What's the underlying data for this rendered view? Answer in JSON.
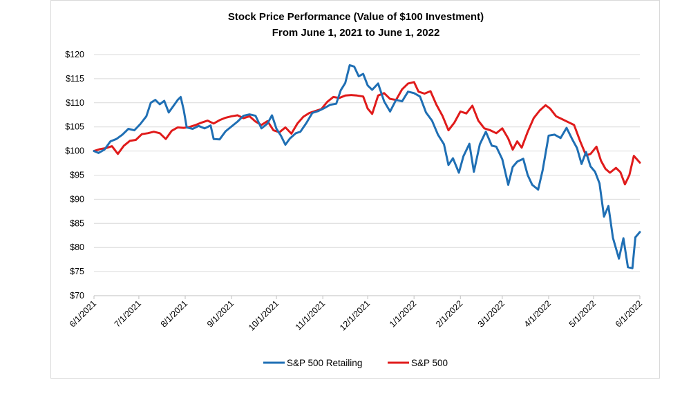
{
  "colors": {
    "retailing": "#1F6FB4",
    "sp500": "#E01B1B",
    "grid": "#d9d9d9",
    "axis": "#bfbfbf"
  },
  "chart_data": {
    "type": "line",
    "title": "Stock Price Performance (Value of $100 Investment)",
    "subtitle": "From June 1, 2021 to June 1, 2022",
    "xlabel": "",
    "ylabel": "",
    "ylim": [
      70,
      120
    ],
    "xlim": [
      "2021-06-01",
      "2022-06-01"
    ],
    "y_ticks": [
      {
        "value": 70,
        "label": "$70"
      },
      {
        "value": 75,
        "label": "$75"
      },
      {
        "value": 80,
        "label": "$80"
      },
      {
        "value": 85,
        "label": "$85"
      },
      {
        "value": 90,
        "label": "$90"
      },
      {
        "value": 95,
        "label": "$95"
      },
      {
        "value": 100,
        "label": "$100"
      },
      {
        "value": 105,
        "label": "$105"
      },
      {
        "value": 110,
        "label": "$110"
      },
      {
        "value": 115,
        "label": "$115"
      },
      {
        "value": 120,
        "label": "$120"
      }
    ],
    "x_ticks": [
      {
        "date": "2021-06-01",
        "label": "6/1/2021"
      },
      {
        "date": "2021-07-01",
        "label": "7/1/2021"
      },
      {
        "date": "2021-08-01",
        "label": "8/1/2021"
      },
      {
        "date": "2021-09-01",
        "label": "9/1/2021"
      },
      {
        "date": "2021-10-01",
        "label": "10/1/2021"
      },
      {
        "date": "2021-11-01",
        "label": "11/1/2021"
      },
      {
        "date": "2021-12-01",
        "label": "12/1/2021"
      },
      {
        "date": "2022-01-01",
        "label": "1/1/2022"
      },
      {
        "date": "2022-02-01",
        "label": "2/1/2022"
      },
      {
        "date": "2022-03-01",
        "label": "3/1/2022"
      },
      {
        "date": "2022-04-01",
        "label": "4/1/2022"
      },
      {
        "date": "2022-05-01",
        "label": "5/1/2022"
      },
      {
        "date": "2022-06-01",
        "label": "6/1/2022"
      }
    ],
    "grid": true,
    "legend_position": "bottom",
    "series": [
      {
        "name": "S&P 500 Retailing",
        "color": "#1F6FB4",
        "points": [
          [
            "2021-06-01",
            100.0
          ],
          [
            "2021-06-04",
            99.6
          ],
          [
            "2021-06-08",
            100.3
          ],
          [
            "2021-06-12",
            102.0
          ],
          [
            "2021-06-16",
            102.5
          ],
          [
            "2021-06-20",
            103.4
          ],
          [
            "2021-06-24",
            104.6
          ],
          [
            "2021-06-28",
            104.3
          ],
          [
            "2021-07-02",
            105.6
          ],
          [
            "2021-07-06",
            107.2
          ],
          [
            "2021-07-09",
            110.0
          ],
          [
            "2021-07-12",
            110.6
          ],
          [
            "2021-07-15",
            109.7
          ],
          [
            "2021-07-18",
            110.4
          ],
          [
            "2021-07-21",
            108.0
          ],
          [
            "2021-07-24",
            109.3
          ],
          [
            "2021-07-27",
            110.6
          ],
          [
            "2021-07-29",
            111.2
          ],
          [
            "2021-07-31",
            108.5
          ],
          [
            "2021-08-02",
            104.9
          ],
          [
            "2021-08-06",
            104.6
          ],
          [
            "2021-08-10",
            105.2
          ],
          [
            "2021-08-14",
            104.7
          ],
          [
            "2021-08-18",
            105.3
          ],
          [
            "2021-08-20",
            102.5
          ],
          [
            "2021-08-24",
            102.4
          ],
          [
            "2021-08-28",
            104.1
          ],
          [
            "2021-09-01",
            105.1
          ],
          [
            "2021-09-05",
            106.1
          ],
          [
            "2021-09-09",
            107.3
          ],
          [
            "2021-09-13",
            107.6
          ],
          [
            "2021-09-17",
            107.3
          ],
          [
            "2021-09-21",
            104.7
          ],
          [
            "2021-09-25",
            105.7
          ],
          [
            "2021-09-28",
            107.4
          ],
          [
            "2021-10-01",
            104.6
          ],
          [
            "2021-10-04",
            103.2
          ],
          [
            "2021-10-07",
            101.3
          ],
          [
            "2021-10-10",
            102.6
          ],
          [
            "2021-10-14",
            103.7
          ],
          [
            "2021-10-17",
            104.0
          ],
          [
            "2021-10-21",
            105.8
          ],
          [
            "2021-10-25",
            107.9
          ],
          [
            "2021-10-29",
            108.3
          ],
          [
            "2021-11-02",
            108.9
          ],
          [
            "2021-11-06",
            109.6
          ],
          [
            "2021-11-10",
            109.8
          ],
          [
            "2021-11-13",
            112.6
          ],
          [
            "2021-11-16",
            114.1
          ],
          [
            "2021-11-19",
            117.8
          ],
          [
            "2021-11-22",
            117.5
          ],
          [
            "2021-11-25",
            115.5
          ],
          [
            "2021-11-28",
            116.0
          ],
          [
            "2021-12-01",
            113.6
          ],
          [
            "2021-12-04",
            112.7
          ],
          [
            "2021-12-08",
            114.0
          ],
          [
            "2021-12-12",
            110.3
          ],
          [
            "2021-12-16",
            108.2
          ],
          [
            "2021-12-20",
            110.6
          ],
          [
            "2021-12-24",
            110.3
          ],
          [
            "2021-12-28",
            112.3
          ],
          [
            "2022-01-01",
            112.0
          ],
          [
            "2022-01-05",
            111.3
          ],
          [
            "2022-01-09",
            108.0
          ],
          [
            "2022-01-13",
            106.3
          ],
          [
            "2022-01-17",
            103.4
          ],
          [
            "2022-01-21",
            101.4
          ],
          [
            "2022-01-24",
            97.1
          ],
          [
            "2022-01-27",
            98.5
          ],
          [
            "2022-01-31",
            95.5
          ],
          [
            "2022-02-03",
            98.9
          ],
          [
            "2022-02-07",
            101.5
          ],
          [
            "2022-02-10",
            95.7
          ],
          [
            "2022-02-14",
            101.4
          ],
          [
            "2022-02-18",
            104.0
          ],
          [
            "2022-02-22",
            101.1
          ],
          [
            "2022-02-25",
            100.9
          ],
          [
            "2022-03-01",
            98.3
          ],
          [
            "2022-03-05",
            93.0
          ],
          [
            "2022-03-08",
            96.7
          ],
          [
            "2022-03-11",
            97.8
          ],
          [
            "2022-03-15",
            98.4
          ],
          [
            "2022-03-18",
            95.0
          ],
          [
            "2022-03-21",
            93.0
          ],
          [
            "2022-03-25",
            92.0
          ],
          [
            "2022-03-28",
            96.0
          ],
          [
            "2022-04-01",
            103.2
          ],
          [
            "2022-04-05",
            103.4
          ],
          [
            "2022-04-09",
            102.7
          ],
          [
            "2022-04-13",
            104.8
          ],
          [
            "2022-04-17",
            102.3
          ],
          [
            "2022-04-20",
            100.6
          ],
          [
            "2022-04-23",
            97.3
          ],
          [
            "2022-04-26",
            99.8
          ],
          [
            "2022-04-29",
            96.8
          ],
          [
            "2022-05-02",
            95.7
          ],
          [
            "2022-05-05",
            93.3
          ],
          [
            "2022-05-08",
            86.4
          ],
          [
            "2022-05-11",
            88.6
          ],
          [
            "2022-05-14",
            82.0
          ],
          [
            "2022-05-18",
            77.7
          ],
          [
            "2022-05-21",
            81.9
          ],
          [
            "2022-05-24",
            75.9
          ],
          [
            "2022-05-27",
            75.7
          ],
          [
            "2022-05-29",
            82.1
          ],
          [
            "2022-06-01",
            83.2
          ]
        ]
      },
      {
        "name": "S&P 500",
        "color": "#E01B1B",
        "points": [
          [
            "2021-06-01",
            100.0
          ],
          [
            "2021-06-05",
            100.4
          ],
          [
            "2021-06-09",
            100.6
          ],
          [
            "2021-06-13",
            101.0
          ],
          [
            "2021-06-17",
            99.4
          ],
          [
            "2021-06-21",
            101.1
          ],
          [
            "2021-06-25",
            102.1
          ],
          [
            "2021-06-29",
            102.3
          ],
          [
            "2021-07-03",
            103.5
          ],
          [
            "2021-07-07",
            103.7
          ],
          [
            "2021-07-11",
            104.0
          ],
          [
            "2021-07-15",
            103.7
          ],
          [
            "2021-07-19",
            102.5
          ],
          [
            "2021-07-23",
            104.2
          ],
          [
            "2021-07-27",
            104.9
          ],
          [
            "2021-07-31",
            104.8
          ],
          [
            "2021-08-04",
            105.0
          ],
          [
            "2021-08-08",
            105.4
          ],
          [
            "2021-08-12",
            105.9
          ],
          [
            "2021-08-16",
            106.3
          ],
          [
            "2021-08-20",
            105.7
          ],
          [
            "2021-08-24",
            106.4
          ],
          [
            "2021-08-28",
            106.9
          ],
          [
            "2021-09-01",
            107.2
          ],
          [
            "2021-09-05",
            107.4
          ],
          [
            "2021-09-09",
            106.8
          ],
          [
            "2021-09-13",
            107.2
          ],
          [
            "2021-09-17",
            106.1
          ],
          [
            "2021-09-21",
            105.4
          ],
          [
            "2021-09-25",
            106.2
          ],
          [
            "2021-09-29",
            104.3
          ],
          [
            "2021-10-03",
            103.9
          ],
          [
            "2021-10-07",
            104.9
          ],
          [
            "2021-10-11",
            103.6
          ],
          [
            "2021-10-15",
            105.7
          ],
          [
            "2021-10-19",
            107.1
          ],
          [
            "2021-10-23",
            107.9
          ],
          [
            "2021-10-27",
            108.3
          ],
          [
            "2021-10-31",
            108.7
          ],
          [
            "2021-11-04",
            110.2
          ],
          [
            "2021-11-08",
            111.2
          ],
          [
            "2021-11-12",
            111.0
          ],
          [
            "2021-11-16",
            111.5
          ],
          [
            "2021-11-20",
            111.6
          ],
          [
            "2021-11-24",
            111.5
          ],
          [
            "2021-11-28",
            111.3
          ],
          [
            "2021-12-01",
            108.8
          ],
          [
            "2021-12-04",
            107.7
          ],
          [
            "2021-12-08",
            111.5
          ],
          [
            "2021-12-12",
            112.0
          ],
          [
            "2021-12-16",
            110.8
          ],
          [
            "2021-12-20",
            110.6
          ],
          [
            "2021-12-24",
            112.8
          ],
          [
            "2021-12-28",
            114.0
          ],
          [
            "2022-01-01",
            114.3
          ],
          [
            "2022-01-04",
            112.3
          ],
          [
            "2022-01-08",
            111.9
          ],
          [
            "2022-01-12",
            112.4
          ],
          [
            "2022-01-16",
            109.6
          ],
          [
            "2022-01-20",
            107.3
          ],
          [
            "2022-01-24",
            104.3
          ],
          [
            "2022-01-28",
            105.9
          ],
          [
            "2022-02-01",
            108.2
          ],
          [
            "2022-02-05",
            107.8
          ],
          [
            "2022-02-09",
            109.4
          ],
          [
            "2022-02-13",
            106.3
          ],
          [
            "2022-02-17",
            104.7
          ],
          [
            "2022-02-21",
            104.3
          ],
          [
            "2022-02-25",
            103.7
          ],
          [
            "2022-03-01",
            104.7
          ],
          [
            "2022-03-05",
            102.6
          ],
          [
            "2022-03-08",
            100.3
          ],
          [
            "2022-03-11",
            102.0
          ],
          [
            "2022-03-14",
            100.7
          ],
          [
            "2022-03-18",
            104.0
          ],
          [
            "2022-03-22",
            106.8
          ],
          [
            "2022-03-26",
            108.4
          ],
          [
            "2022-03-30",
            109.5
          ],
          [
            "2022-04-02",
            108.8
          ],
          [
            "2022-04-06",
            107.2
          ],
          [
            "2022-04-10",
            106.6
          ],
          [
            "2022-04-14",
            106.0
          ],
          [
            "2022-04-18",
            105.4
          ],
          [
            "2022-04-22",
            102.1
          ],
          [
            "2022-04-26",
            99.1
          ],
          [
            "2022-04-29",
            99.4
          ],
          [
            "2022-05-03",
            100.9
          ],
          [
            "2022-05-06",
            98.0
          ],
          [
            "2022-05-09",
            96.3
          ],
          [
            "2022-05-12",
            95.5
          ],
          [
            "2022-05-16",
            96.5
          ],
          [
            "2022-05-19",
            95.6
          ],
          [
            "2022-05-22",
            93.1
          ],
          [
            "2022-05-25",
            95.0
          ],
          [
            "2022-05-28",
            99.0
          ],
          [
            "2022-06-01",
            97.6
          ]
        ]
      }
    ]
  }
}
